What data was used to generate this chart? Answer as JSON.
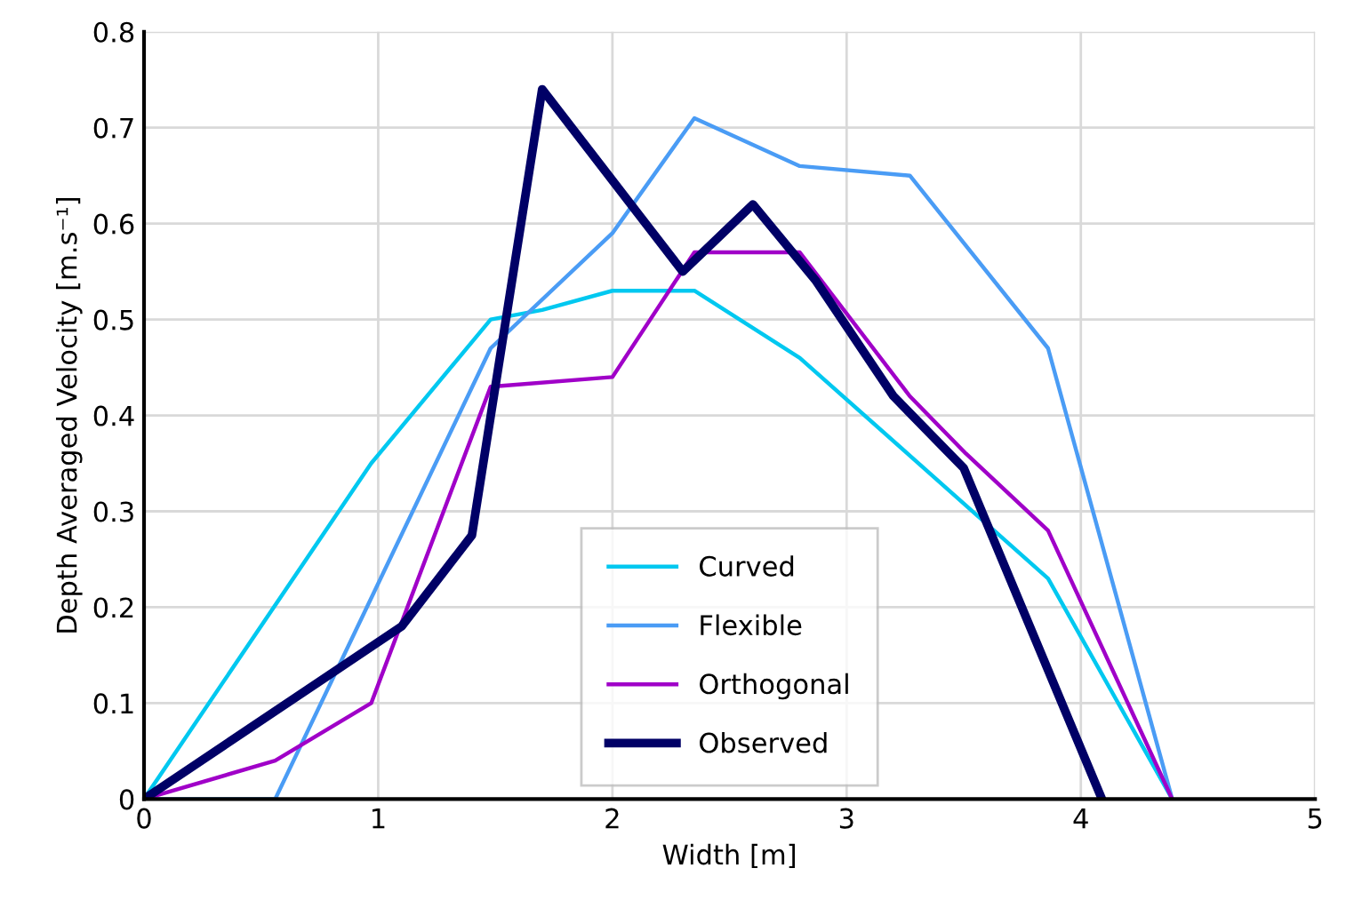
{
  "chart_data": {
    "type": "line",
    "xlabel": "Width [m]",
    "ylabel": "Depth Averaged Velocity [m.s⁻¹]",
    "xlim": [
      0,
      5
    ],
    "xticks": [
      0,
      1,
      2,
      3,
      4,
      5
    ],
    "ylim": [
      0,
      0.8
    ],
    "yticks": [
      0,
      0.1,
      0.2,
      0.3,
      0.4,
      0.5,
      0.6,
      0.7,
      0.8
    ],
    "grid": true,
    "legend": "bottom",
    "marker": "none",
    "line_style": "solid",
    "series": [
      {
        "name": "Curved",
        "color": "#00c8f0",
        "x": [
          0,
          0.97,
          1.48,
          1.7,
          2.0,
          2.35,
          2.8,
          3.86,
          4.39
        ],
        "values": [
          0,
          0.35,
          0.5,
          0.51,
          0.53,
          0.53,
          0.46,
          0.23,
          0
        ]
      },
      {
        "name": "Flexible",
        "color": "#4a9cf5",
        "x": [
          0,
          0.56,
          1.48,
          2.0,
          2.35,
          2.8,
          3.27,
          3.86,
          4.39
        ],
        "values": [
          0,
          0,
          0.47,
          0.59,
          0.71,
          0.66,
          0.65,
          0.47,
          0
        ]
      },
      {
        "name": "Orthogonal",
        "color": "#a000c8",
        "x": [
          0,
          0.56,
          0.97,
          1.48,
          2.0,
          2.35,
          2.8,
          3.27,
          3.51,
          3.86,
          4.39
        ],
        "values": [
          0,
          0.04,
          0.1,
          0.43,
          0.44,
          0.57,
          0.57,
          0.42,
          0.36,
          0.28,
          0
        ]
      },
      {
        "name": "Observed",
        "color": "#000066",
        "x": [
          0,
          1.1,
          1.4,
          1.7,
          2.3,
          2.6,
          2.87,
          3.2,
          3.5,
          4.09
        ],
        "values": [
          0,
          0.18,
          0.275,
          0.74,
          0.55,
          0.62,
          0.54,
          0.42,
          0.345,
          0
        ]
      }
    ]
  }
}
